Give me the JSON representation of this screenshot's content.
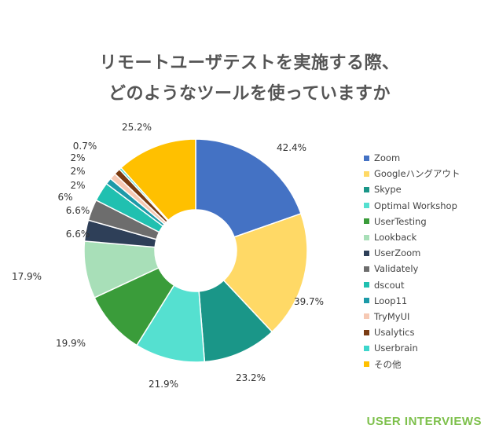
{
  "title": {
    "line1": "リモートユーザテストを実施する際、",
    "line2": "どのようなツールを使っていますか"
  },
  "brand": "USER INTERVIEWS",
  "chart_data": {
    "type": "pie",
    "subtype": "donut",
    "legend_position": "right",
    "slices": [
      {
        "name": "Zoom",
        "value": 42.4,
        "label": "42.4%",
        "color": "#4472c4"
      },
      {
        "name": "Googleハングアウト",
        "value": 39.7,
        "label": "39.7%",
        "color": "#ffd966"
      },
      {
        "name": "Skype",
        "value": 23.2,
        "label": "23.2%",
        "color": "#1a9688"
      },
      {
        "name": "Optimal Workshop",
        "value": 21.9,
        "label": "21.9%",
        "color": "#55e0d0"
      },
      {
        "name": "UserTesting",
        "value": 19.9,
        "label": "19.9%",
        "color": "#3a9c3a"
      },
      {
        "name": "Lookback",
        "value": 17.9,
        "label": "17.9%",
        "color": "#a8dfb8"
      },
      {
        "name": "UserZoom",
        "value": 6.6,
        "label": "6.6%",
        "color": "#2e3f58"
      },
      {
        "name": "Validately",
        "value": 6.6,
        "label": "6.6%",
        "color": "#6d6d6d"
      },
      {
        "name": "dscout",
        "value": 6,
        "label": "6%",
        "color": "#20c0b0"
      },
      {
        "name": "Loop11",
        "value": 2,
        "label": "2%",
        "color": "#1c9aa8"
      },
      {
        "name": "TryMyUI",
        "value": 2,
        "label": "2%",
        "color": "#f6c9b4"
      },
      {
        "name": "Usalytics",
        "value": 2,
        "label": "2%",
        "color": "#7a3b12"
      },
      {
        "name": "Userbrain",
        "value": 0.7,
        "label": "0.7%",
        "color": "#3ed6cc"
      },
      {
        "name": "その他",
        "value": 25.2,
        "label": "25.2%",
        "color": "#ffc000"
      }
    ]
  }
}
